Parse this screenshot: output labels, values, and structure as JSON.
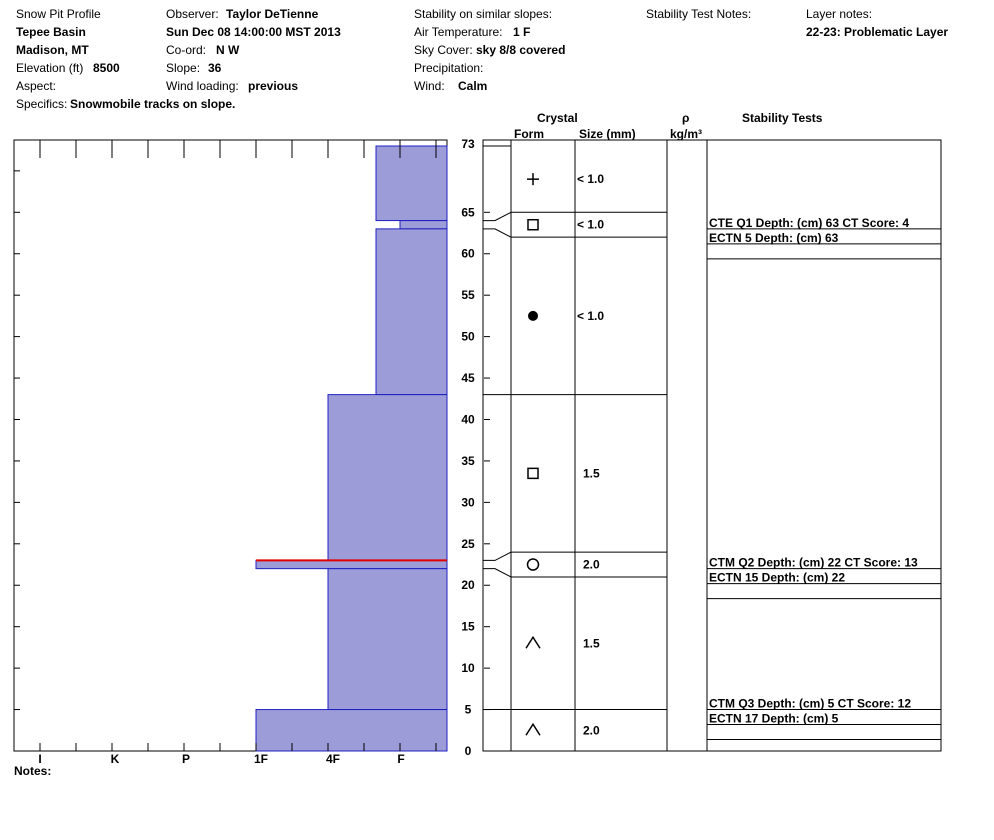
{
  "header": {
    "profile_label": "Snow Pit Profile",
    "location": "Tepee Basin",
    "region": "Madison, MT",
    "elevation_label": "Elevation (ft)",
    "elevation_value": "8500",
    "aspect_label": "Aspect:",
    "specifics_label": "Specifics:",
    "specifics_value": "Snowmobile tracks on slope.",
    "observer_label": "Observer:",
    "observer_value": "Taylor DeTienne",
    "datetime": "Sun Dec 08 14:00:00 MST 2013",
    "coord_label": "Co-ord:",
    "coord_value": "N  W",
    "slope_label": "Slope:",
    "slope_value": "36",
    "wind_loading_label": "Wind loading:",
    "wind_loading_value": "previous",
    "stability_similar_label": "Stability on similar slopes:",
    "air_temp_label": "Air Temperature:",
    "air_temp_value": "1 F",
    "sky_cover_label": "Sky Cover:",
    "sky_cover_value": "sky 8/8 covered",
    "precip_label": "Precipitation:",
    "wind_label": "Wind:",
    "wind_value": "Calm",
    "stability_notes_label": "Stability Test Notes:",
    "layer_notes_label": "Layer notes:",
    "layer_notes_value": "22-23: Problematic Layer"
  },
  "columns": {
    "crystal": "Crystal",
    "form": "Form",
    "size": "Size (mm)",
    "rho": "ρ",
    "density_unit": "kg/m³",
    "stability_tests": "Stability Tests"
  },
  "notes_label": "Notes:",
  "colors": {
    "hardness_fill": "#9c9cd8",
    "hardness_stroke": "#2020c0",
    "weak_layer": "#e00000"
  },
  "chart_data": {
    "type": "bar",
    "hardness_scale": [
      "I",
      "K",
      "P",
      "1F",
      "4F",
      "F"
    ],
    "depth_range": [
      0,
      73
    ],
    "depth_ticks": [
      0,
      5,
      10,
      15,
      20,
      25,
      30,
      35,
      40,
      45,
      50,
      55,
      60,
      65,
      73
    ],
    "hardness_layers": [
      {
        "top": 73,
        "bottom": 64,
        "hardness": "F"
      },
      {
        "top": 64,
        "bottom": 63,
        "hardness": "F-"
      },
      {
        "top": 63,
        "bottom": 43,
        "hardness": "F"
      },
      {
        "top": 43,
        "bottom": 23,
        "hardness": "4F"
      },
      {
        "top": 23,
        "bottom": 22,
        "hardness": "1F"
      },
      {
        "top": 22,
        "bottom": 5,
        "hardness": "4F"
      },
      {
        "top": 5,
        "bottom": 0,
        "hardness": "1F"
      }
    ],
    "weak_layer_depth": 23,
    "crystal_layers": [
      {
        "top": 73,
        "bottom": 65,
        "form": "+",
        "size": "< 1.0"
      },
      {
        "top": 65,
        "bottom": 62,
        "form": "□",
        "size": "< 1.0"
      },
      {
        "top": 62,
        "bottom": 43,
        "form": "●",
        "size": "< 1.0"
      },
      {
        "top": 43,
        "bottom": 24,
        "form": "□",
        "size": "1.5"
      },
      {
        "top": 24,
        "bottom": 21,
        "form": "○",
        "size": "2.0"
      },
      {
        "top": 21,
        "bottom": 5,
        "form": "∧",
        "size": "1.5"
      },
      {
        "top": 5,
        "bottom": 0,
        "form": "∧",
        "size": "2.0"
      }
    ],
    "stability_tests": [
      {
        "depth": 63,
        "lines": [
          "CTE Q1 Depth: (cm) 63 CT Score: 4",
          "ECTN 5   Depth: (cm) 63"
        ]
      },
      {
        "depth": 22,
        "lines": [
          "CTM Q2 Depth: (cm) 22 CT Score: 13",
          "ECTN 15   Depth: (cm) 22"
        ]
      },
      {
        "depth": 5,
        "lines": [
          "CTM Q3 Depth: (cm) 5 CT Score: 12",
          "ECTN 17   Depth: (cm) 5"
        ]
      }
    ]
  }
}
